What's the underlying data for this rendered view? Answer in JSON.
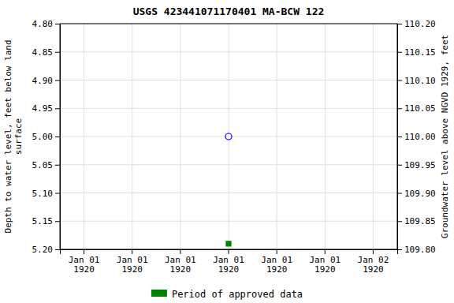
{
  "chart_data": {
    "type": "scatter",
    "title": "USGS 423441071170401 MA-BCW  122",
    "y_label": "Depth to water level, feet below land\nsurface",
    "y2_label": "Groundwater level above NGVD 1929, feet",
    "categories": [
      "Jan 01\n1920",
      "Jan 01\n1920",
      "Jan 01\n1920",
      "Jan 01\n1920",
      "Jan 01\n1920",
      "Jan 01\n1920",
      "Jan 02\n1920"
    ],
    "series": [
      {
        "color": "blue",
        "marker": "circle-open",
        "values": [
          null,
          null,
          null,
          5.0,
          null,
          null,
          null
        ]
      },
      {
        "name": "Period of approved data",
        "color": "#008000",
        "marker": "square",
        "values": [
          null,
          null,
          null,
          5.19,
          null,
          null,
          null
        ]
      }
    ],
    "ylim": [
      5.2,
      4.8
    ],
    "yticks": [
      {
        "value": 4.8,
        "label": "4.80"
      },
      4.85,
      {
        "value": 4.9,
        "label": "4.90"
      },
      4.95,
      {
        "value": 5.0,
        "label": "5.00"
      },
      5.05,
      {
        "value": 5.1,
        "label": "5.10"
      },
      5.15,
      {
        "value": 5.2,
        "label": "5.20"
      }
    ],
    "y2lim": [
      109.8,
      110.2
    ],
    "y2ticks": [
      {
        "value": 109.8,
        "label": "109.80"
      },
      109.85,
      {
        "value": 109.9,
        "label": "109.90"
      },
      109.95,
      {
        "value": 110.0,
        "label": "110.00"
      },
      110.05,
      {
        "value": 110.1,
        "label": "110.10"
      },
      110.15,
      {
        "value": 110.2,
        "label": "110.20"
      }
    ],
    "grid": true,
    "legend": "bottom"
  }
}
